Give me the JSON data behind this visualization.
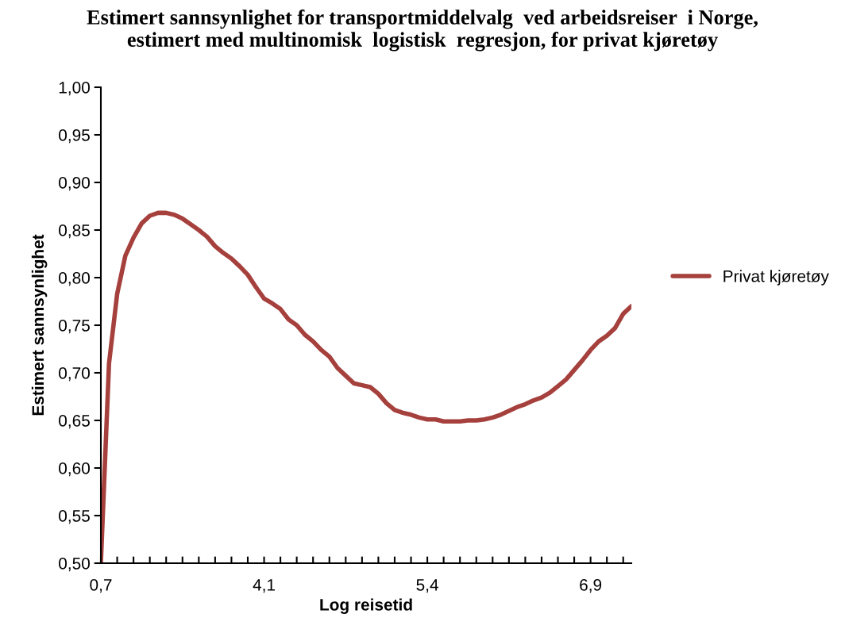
{
  "chart_data": {
    "type": "line",
    "title": "Estimert sannsynlighet for transportmiddelvalg  ved arbeidsreiser  i Norge,\nestimert med multinomisk  logistisk  regresjon, for privat kjøretøy",
    "xlabel": "Log reisetid",
    "ylabel": "Estimert sannsynlighet",
    "categories": [
      "0,7",
      null,
      null,
      null,
      null,
      null,
      null,
      null,
      null,
      null,
      null,
      null,
      null,
      null,
      null,
      null,
      null,
      null,
      null,
      null,
      "4,1",
      null,
      null,
      null,
      null,
      null,
      null,
      null,
      null,
      null,
      null,
      null,
      null,
      null,
      null,
      null,
      null,
      null,
      null,
      null,
      "5,4",
      null,
      null,
      null,
      null,
      null,
      null,
      null,
      null,
      null,
      null,
      null,
      null,
      null,
      null,
      null,
      null,
      null,
      null,
      null,
      "6,9",
      null,
      null,
      null,
      null,
      null
    ],
    "series": [
      {
        "name": "Privat kjøretøy",
        "color": "#a5403d",
        "values": [
          0.5,
          0.71,
          0.783,
          0.823,
          0.842,
          0.857,
          0.865,
          0.868,
          0.868,
          0.866,
          0.862,
          0.856,
          0.85,
          0.843,
          0.833,
          0.826,
          0.82,
          0.812,
          0.803,
          0.79,
          0.778,
          0.773,
          0.767,
          0.756,
          0.75,
          0.74,
          0.733,
          0.724,
          0.717,
          0.705,
          0.697,
          0.689,
          0.687,
          0.685,
          0.678,
          0.668,
          0.661,
          0.658,
          0.656,
          0.653,
          0.651,
          0.651,
          0.649,
          0.649,
          0.649,
          0.65,
          0.65,
          0.651,
          0.653,
          0.656,
          0.66,
          0.664,
          0.667,
          0.671,
          0.674,
          0.679,
          0.686,
          0.693,
          0.703,
          0.713,
          0.724,
          0.733,
          0.739,
          0.747,
          0.762,
          0.77
        ]
      }
    ],
    "ylim": [
      0.5,
      1.0
    ],
    "yticks": [
      {
        "value": 0.5,
        "label": "0,50"
      },
      {
        "value": 0.55,
        "label": "0,55"
      },
      {
        "value": 0.6,
        "label": "0,60"
      },
      {
        "value": 0.65,
        "label": "0,65"
      },
      {
        "value": 0.7,
        "label": "0,70"
      },
      {
        "value": 0.75,
        "label": "0,75"
      },
      {
        "value": 0.8,
        "label": "0,80"
      },
      {
        "value": 0.85,
        "label": "0,85"
      },
      {
        "value": 0.9,
        "label": "0,90"
      },
      {
        "value": 0.95,
        "label": "0,95"
      },
      {
        "value": 1.0,
        "label": "1,00"
      }
    ],
    "grid": false,
    "legend": "right",
    "marker": "none",
    "line_style": "solid"
  }
}
